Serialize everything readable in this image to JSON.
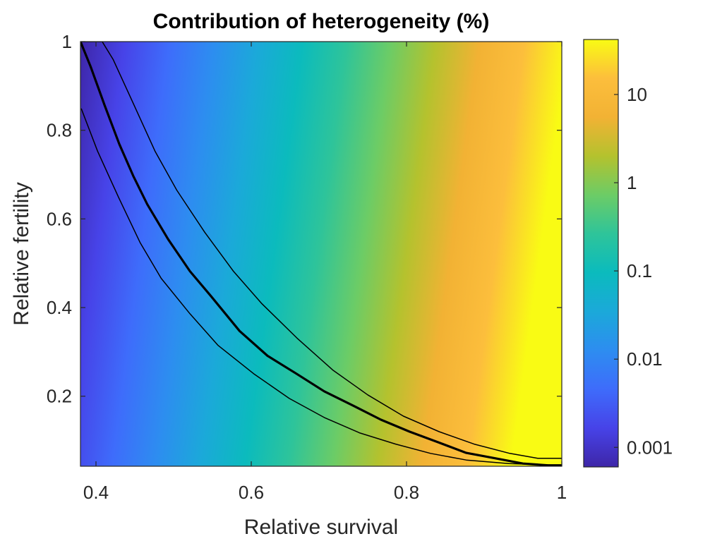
{
  "chart_data": {
    "type": "heatmap",
    "title": "Contribution of heterogeneity (%)",
    "xlabel": "Relative survival",
    "ylabel": "Relative fertility",
    "xlim": [
      0.38,
      1.0
    ],
    "ylim": [
      0.042,
      1.0
    ],
    "xticks": [
      0.4,
      0.6,
      0.8,
      1.0
    ],
    "xtick_labels": [
      "0.4",
      "0.6",
      "0.8",
      "1"
    ],
    "yticks": [
      0.2,
      0.4,
      0.6,
      0.8,
      1.0
    ],
    "ytick_labels": [
      "0.2",
      "0.4",
      "0.6",
      "0.8",
      "1"
    ],
    "colorbar": {
      "scale": "log",
      "colormap": "parula",
      "range": [
        0.0006,
        42
      ],
      "ticks": [
        0.001,
        0.01,
        0.1,
        1,
        10
      ],
      "tick_labels": [
        "0.001",
        "0.01",
        "0.1",
        "1",
        "10"
      ]
    },
    "heatmap_description": "Value increases mainly with relative survival (x), roughly log-linear from ~0.0006% at x=0.38 to ~40% at x=1.0, with slight increase toward lower fertility",
    "colormap_stops": [
      "#3e26a8",
      "#4743e8",
      "#3e6cfb",
      "#2d8df0",
      "#1ba9d9",
      "#0bbbbd",
      "#2ec49a",
      "#6ccc66",
      "#b4c22e",
      "#f2b234",
      "#fcbe3c",
      "#f9fb14"
    ],
    "contours": [
      {
        "name": "upper",
        "style": "thin",
        "points": [
          [
            0.38,
            1.0
          ],
          [
            0.408,
            1.0
          ],
          [
            0.422,
            0.96
          ],
          [
            0.449,
            0.857
          ],
          [
            0.476,
            0.753
          ],
          [
            0.504,
            0.665
          ],
          [
            0.54,
            0.57
          ],
          [
            0.577,
            0.482
          ],
          [
            0.613,
            0.41
          ],
          [
            0.659,
            0.331
          ],
          [
            0.705,
            0.259
          ],
          [
            0.75,
            0.203
          ],
          [
            0.796,
            0.155
          ],
          [
            0.842,
            0.12
          ],
          [
            0.887,
            0.092
          ],
          [
            0.933,
            0.071
          ],
          [
            0.969,
            0.06
          ],
          [
            1.0,
            0.06
          ]
        ]
      },
      {
        "name": "middle",
        "style": "thick",
        "points": [
          [
            0.38,
            1.0
          ],
          [
            0.393,
            0.944
          ],
          [
            0.411,
            0.857
          ],
          [
            0.43,
            0.769
          ],
          [
            0.448,
            0.697
          ],
          [
            0.466,
            0.633
          ],
          [
            0.493,
            0.554
          ],
          [
            0.521,
            0.482
          ],
          [
            0.548,
            0.426
          ],
          [
            0.585,
            0.347
          ],
          [
            0.621,
            0.291
          ],
          [
            0.658,
            0.251
          ],
          [
            0.694,
            0.211
          ],
          [
            0.731,
            0.179
          ],
          [
            0.767,
            0.147
          ],
          [
            0.804,
            0.12
          ],
          [
            0.841,
            0.096
          ],
          [
            0.877,
            0.072
          ],
          [
            0.914,
            0.06
          ],
          [
            0.95,
            0.048
          ],
          [
            0.982,
            0.044
          ],
          [
            1.0,
            0.044
          ]
        ]
      },
      {
        "name": "lower",
        "style": "thin",
        "points": [
          [
            0.381,
            0.849
          ],
          [
            0.402,
            0.753
          ],
          [
            0.429,
            0.649
          ],
          [
            0.457,
            0.546
          ],
          [
            0.484,
            0.466
          ],
          [
            0.521,
            0.386
          ],
          [
            0.557,
            0.315
          ],
          [
            0.603,
            0.251
          ],
          [
            0.649,
            0.195
          ],
          [
            0.694,
            0.152
          ],
          [
            0.74,
            0.117
          ],
          [
            0.786,
            0.092
          ],
          [
            0.831,
            0.071
          ],
          [
            0.877,
            0.056
          ],
          [
            0.932,
            0.048
          ],
          [
            1.0,
            0.044
          ]
        ]
      }
    ]
  }
}
